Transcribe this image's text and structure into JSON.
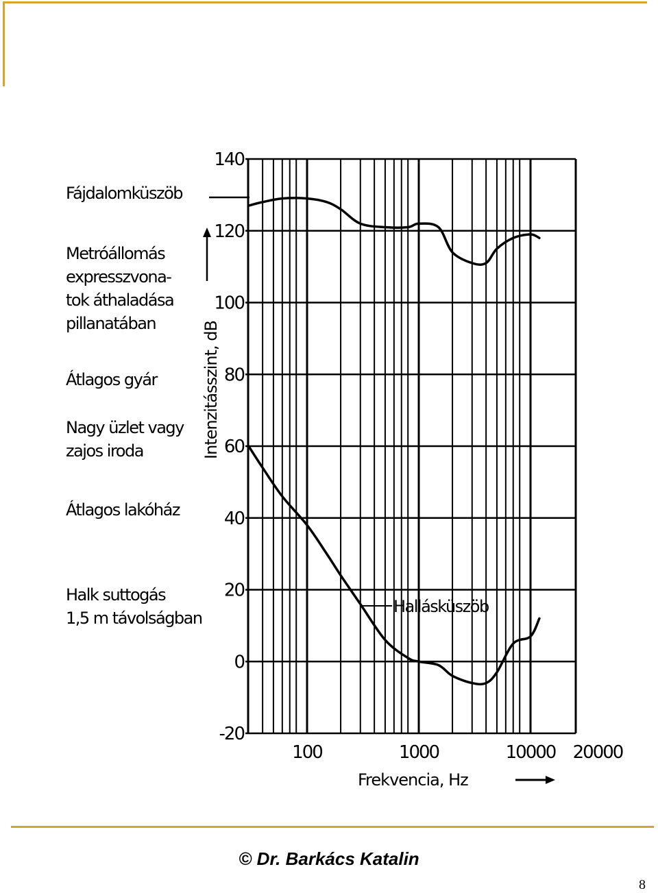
{
  "theme": {
    "accent": "#d4a72c",
    "ink": "#000000"
  },
  "chart_data": {
    "type": "line",
    "x_scale": "log",
    "xlabel": "Frekvencia, Hz",
    "ylabel": "Intenzitásszint, dB",
    "ylim": [
      -20,
      140
    ],
    "xlim": [
      30,
      12000
    ],
    "grid": true,
    "yticks": [
      {
        "value": 140,
        "label": "140"
      },
      {
        "value": 120,
        "label": "120"
      },
      {
        "value": 100,
        "label": "100"
      },
      {
        "value": 80,
        "label": "80"
      },
      {
        "value": 60,
        "label": "60"
      },
      {
        "value": 40,
        "label": "40"
      },
      {
        "value": 20,
        "label": "20"
      },
      {
        "value": 0,
        "label": "0"
      },
      {
        "value": -20,
        "label": "-20"
      }
    ],
    "xticks": [
      {
        "value": 100,
        "label": "100"
      },
      {
        "value": 1000,
        "label": "1000"
      },
      {
        "value": 10000,
        "label": "10000"
      },
      {
        "value": 20000,
        "label": "20000"
      }
    ],
    "series": [
      {
        "name": "Fájdalomküszöb",
        "x": [
          30,
          40,
          60,
          100,
          150,
          200,
          300,
          500,
          800,
          1000,
          1500,
          2000,
          3000,
          4000,
          5000,
          7000,
          10000,
          12000
        ],
        "y": [
          127,
          128,
          129,
          129,
          128,
          126,
          122,
          121,
          121,
          122,
          121,
          114,
          111,
          111,
          115,
          118,
          119,
          118
        ]
      },
      {
        "name": "Hallásküszöb",
        "x": [
          30,
          40,
          60,
          100,
          150,
          200,
          300,
          500,
          800,
          1000,
          1500,
          2000,
          3000,
          4000,
          5000,
          7000,
          10000,
          12000
        ],
        "y": [
          60,
          54,
          46,
          38,
          30,
          24,
          16,
          6,
          1,
          0,
          -1,
          -4,
          -6,
          -6,
          -3,
          5,
          7,
          12
        ]
      }
    ],
    "annotations": [
      {
        "lines": [
          "Fájdalomküszöb"
        ],
        "value": 128
      },
      {
        "lines": [
          "Metróállomás",
          "expresszvona-",
          "tok áthaladása",
          "pillanatában"
        ],
        "value": 110
      },
      {
        "lines": [
          "Átlagos gyár"
        ],
        "value": 78
      },
      {
        "lines": [
          "Nagy üzlet vagy",
          "zajos iroda"
        ],
        "value": 63
      },
      {
        "lines": [
          "Átlagos lakóház"
        ],
        "value": 40
      },
      {
        "lines": [
          "Halk suttogás",
          "1,5 m távolságban"
        ],
        "value": 17
      }
    ],
    "curve_label": "Hallásküszöb"
  },
  "footer": {
    "credit": "© Dr. Barkács Katalin",
    "page_number": "8"
  }
}
